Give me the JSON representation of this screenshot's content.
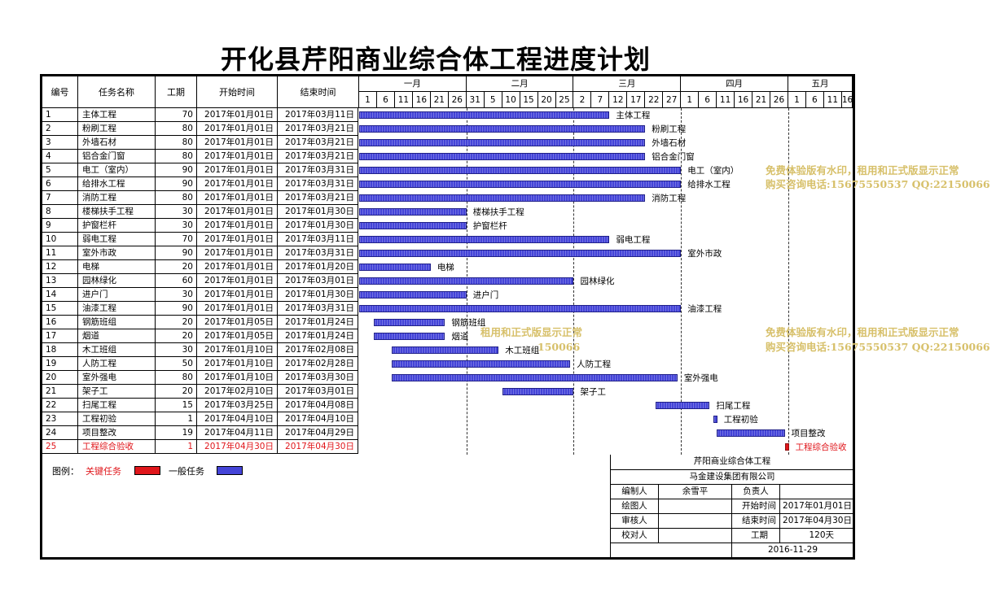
{
  "title": "开化县芹阳商业综合体工程进度计划",
  "headers": {
    "id": "编号",
    "name": "任务名称",
    "duration": "工期",
    "start": "开始时间",
    "end": "结束时间"
  },
  "months": [
    {
      "label": "一月",
      "ticks": [
        "1",
        "6",
        "11",
        "16",
        "21",
        "26"
      ]
    },
    {
      "label": "二月",
      "ticks": [
        "31",
        "5",
        "10",
        "15",
        "20",
        "25"
      ]
    },
    {
      "label": "三月",
      "ticks": [
        "2",
        "7",
        "12",
        "17",
        "22",
        "27"
      ]
    },
    {
      "label": "四月",
      "ticks": [
        "1",
        "6",
        "11",
        "16",
        "21",
        "26"
      ]
    },
    {
      "label": "五月",
      "ticks": [
        "1",
        "6",
        "11",
        "16"
      ]
    }
  ],
  "tasks": [
    {
      "id": "1",
      "name": "主体工程",
      "duration": "70",
      "start": "2017年01月01日",
      "end": "2017年03月11日",
      "label": "主体工程",
      "s": 0,
      "d": 70,
      "critical": false
    },
    {
      "id": "2",
      "name": "粉刷工程",
      "duration": "80",
      "start": "2017年01月01日",
      "end": "2017年03月21日",
      "label": "粉刷工程",
      "s": 0,
      "d": 80,
      "critical": false
    },
    {
      "id": "3",
      "name": "外墙石材",
      "duration": "80",
      "start": "2017年01月01日",
      "end": "2017年03月21日",
      "label": "外墙石材",
      "s": 0,
      "d": 80,
      "critical": false
    },
    {
      "id": "4",
      "name": "铝合金门窗",
      "duration": "80",
      "start": "2017年01月01日",
      "end": "2017年03月21日",
      "label": "铝合金门窗",
      "s": 0,
      "d": 80,
      "critical": false
    },
    {
      "id": "5",
      "name": "电工（室内）",
      "duration": "90",
      "start": "2017年01月01日",
      "end": "2017年03月31日",
      "label": "电工（室内）",
      "s": 0,
      "d": 90,
      "critical": false
    },
    {
      "id": "6",
      "name": "给排水工程",
      "duration": "90",
      "start": "2017年01月01日",
      "end": "2017年03月31日",
      "label": "给排水工程",
      "s": 0,
      "d": 90,
      "critical": false
    },
    {
      "id": "7",
      "name": "消防工程",
      "duration": "80",
      "start": "2017年01月01日",
      "end": "2017年03月21日",
      "label": "消防工程",
      "s": 0,
      "d": 80,
      "critical": false
    },
    {
      "id": "8",
      "name": "楼梯扶手工程",
      "duration": "30",
      "start": "2017年01月01日",
      "end": "2017年01月30日",
      "label": "楼梯扶手工程",
      "s": 0,
      "d": 30,
      "critical": false
    },
    {
      "id": "9",
      "name": "护窗栏杆",
      "duration": "30",
      "start": "2017年01月01日",
      "end": "2017年01月30日",
      "label": "护窗栏杆",
      "s": 0,
      "d": 30,
      "critical": false
    },
    {
      "id": "10",
      "name": "弱电工程",
      "duration": "70",
      "start": "2017年01月01日",
      "end": "2017年03月11日",
      "label": "弱电工程",
      "s": 0,
      "d": 70,
      "critical": false
    },
    {
      "id": "11",
      "name": "室外市政",
      "duration": "90",
      "start": "2017年01月01日",
      "end": "2017年03月31日",
      "label": "室外市政",
      "s": 0,
      "d": 90,
      "critical": false
    },
    {
      "id": "12",
      "name": "电梯",
      "duration": "20",
      "start": "2017年01月01日",
      "end": "2017年01月20日",
      "label": "电梯",
      "s": 0,
      "d": 20,
      "critical": false
    },
    {
      "id": "13",
      "name": "园林绿化",
      "duration": "60",
      "start": "2017年01月01日",
      "end": "2017年03月01日",
      "label": "园林绿化",
      "s": 0,
      "d": 60,
      "critical": false
    },
    {
      "id": "14",
      "name": "进户门",
      "duration": "30",
      "start": "2017年01月01日",
      "end": "2017年01月30日",
      "label": "进户门",
      "s": 0,
      "d": 30,
      "critical": false
    },
    {
      "id": "15",
      "name": "油漆工程",
      "duration": "90",
      "start": "2017年01月01日",
      "end": "2017年03月31日",
      "label": "油漆工程",
      "s": 0,
      "d": 90,
      "critical": false
    },
    {
      "id": "16",
      "name": "钢筋班组",
      "duration": "20",
      "start": "2017年01月05日",
      "end": "2017年01月24日",
      "label": "钢筋班组",
      "s": 4,
      "d": 20,
      "critical": false
    },
    {
      "id": "17",
      "name": "烟道",
      "duration": "20",
      "start": "2017年01月05日",
      "end": "2017年01月24日",
      "label": "烟道",
      "s": 4,
      "d": 20,
      "critical": false
    },
    {
      "id": "18",
      "name": "木工班组",
      "duration": "30",
      "start": "2017年01月10日",
      "end": "2017年02月08日",
      "label": "木工班组",
      "s": 9,
      "d": 30,
      "critical": false
    },
    {
      "id": "19",
      "name": "人防工程",
      "duration": "50",
      "start": "2017年01月10日",
      "end": "2017年02月28日",
      "label": "人防工程",
      "s": 9,
      "d": 50,
      "critical": false
    },
    {
      "id": "20",
      "name": "室外强电",
      "duration": "80",
      "start": "2017年01月10日",
      "end": "2017年03月30日",
      "label": "室外强电",
      "s": 9,
      "d": 80,
      "critical": false
    },
    {
      "id": "21",
      "name": "架子工",
      "duration": "20",
      "start": "2017年02月10日",
      "end": "2017年03月01日",
      "label": "架子工",
      "s": 40,
      "d": 20,
      "critical": false
    },
    {
      "id": "22",
      "name": "扫尾工程",
      "duration": "15",
      "start": "2017年03月25日",
      "end": "2017年04月08日",
      "label": "扫尾工程",
      "s": 83,
      "d": 15,
      "critical": false
    },
    {
      "id": "23",
      "name": "工程初验",
      "duration": "1",
      "start": "2017年04月10日",
      "end": "2017年04月10日",
      "label": "工程初验",
      "s": 99,
      "d": 1,
      "critical": false
    },
    {
      "id": "24",
      "name": "项目整改",
      "duration": "19",
      "start": "2017年04月11日",
      "end": "2017年04月29日",
      "label": "项目整改",
      "s": 100,
      "d": 19,
      "critical": false
    },
    {
      "id": "25",
      "name": "工程综合验收",
      "duration": "1",
      "start": "2017年04月30日",
      "end": "2017年04月30日",
      "label": "工程综合验收",
      "s": 119,
      "d": 1,
      "critical": true
    }
  ],
  "legend": {
    "title": "图例：",
    "critical": "关键任务",
    "normal": "一般任务",
    "critical_color": "#e0161b",
    "normal_color": "#4444d8"
  },
  "titleblock": {
    "project": "芹阳商业综合体工程",
    "company": "马金建设集团有限公司",
    "prepared_by_label": "编制人",
    "prepared_by": "余雪平",
    "responsible_label": "负责人",
    "responsible": "",
    "drawn_by_label": "绘图人",
    "drawn_by": "",
    "start_label": "开始时间",
    "start": "2017年01月01日",
    "reviewed_by_label": "审核人",
    "reviewed_by": "",
    "end_label": "结束时间",
    "end": "2017年04月30日",
    "checked_by_label": "校对人",
    "checked_by": "",
    "duration_label": "工期",
    "duration": "120天",
    "date": "2016-11-29"
  },
  "watermark": {
    "line1": "免费体验版有水印，租用和正式版显示正常",
    "line2": "购买咨询电话:15675550537 QQ:22150066",
    "line1_fragment": "租用和正式版显示正常",
    "line2_fragment": "150066"
  }
}
